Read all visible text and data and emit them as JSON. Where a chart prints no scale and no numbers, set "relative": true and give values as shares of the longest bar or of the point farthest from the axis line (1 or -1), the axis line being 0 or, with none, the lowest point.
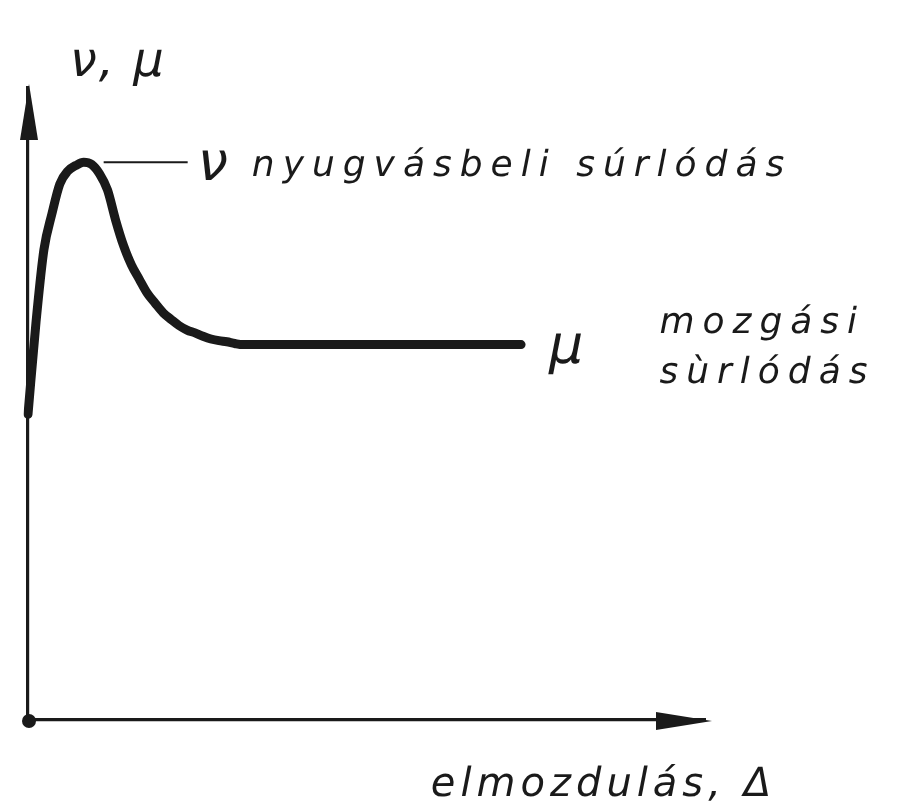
{
  "chart_data": {
    "type": "line",
    "relative": true,
    "color": "#1a1a1a",
    "xlabel": "elmozdulás, Δ",
    "ylabel": "ν, μ",
    "annotations": [
      "ν nyugvásbeli súrlódás",
      "μ mozgási sùrlódás"
    ],
    "categories": [
      null,
      null,
      null,
      null,
      null,
      null,
      null,
      null,
      null,
      null,
      null,
      null,
      null,
      null,
      null,
      null,
      null,
      null,
      null,
      null,
      null,
      null,
      null,
      null,
      null,
      null,
      null,
      null,
      null,
      null,
      null,
      null,
      null,
      null,
      null,
      null,
      null,
      null,
      null,
      null,
      null,
      null,
      null,
      null,
      null,
      null,
      null,
      null,
      null,
      null,
      null,
      null,
      null,
      null,
      null,
      null,
      null,
      null,
      null,
      null,
      null,
      null,
      null,
      null,
      null,
      null,
      null,
      null,
      null,
      null,
      null,
      null,
      null,
      null,
      null,
      null,
      null,
      null,
      null,
      null,
      null,
      null,
      null,
      null,
      null,
      null
    ],
    "values": [
      0.548,
      0.712,
      0.843,
      0.907,
      0.961,
      0.984,
      0.994,
      1,
      0.996,
      0.979,
      0.95,
      0.897,
      0.851,
      0.816,
      0.79,
      0.765,
      0.747,
      0.73,
      0.718,
      0.707,
      0.699,
      0.694,
      0.688,
      0.683,
      0.68,
      0.678,
      0.675,
      0.673,
      0.673,
      0.673,
      0.673,
      0.673,
      0.673,
      0.673,
      0.673,
      0.673,
      0.673,
      0.673,
      0.673,
      0.673,
      0.673,
      0.673,
      0.673,
      0.673,
      0.673,
      0.673,
      0.673,
      0.673,
      0.673,
      0.673,
      0.673,
      0.673,
      0.673,
      0.673,
      0.673,
      0.673,
      0.673,
      0.673,
      0.673,
      0.673,
      0.673,
      0.673,
      0.673,
      null,
      null,
      null,
      null,
      null,
      null,
      null,
      null,
      null,
      null,
      null,
      null,
      null,
      null,
      null,
      null,
      null,
      null,
      null,
      null,
      null,
      null,
      null
    ]
  }
}
